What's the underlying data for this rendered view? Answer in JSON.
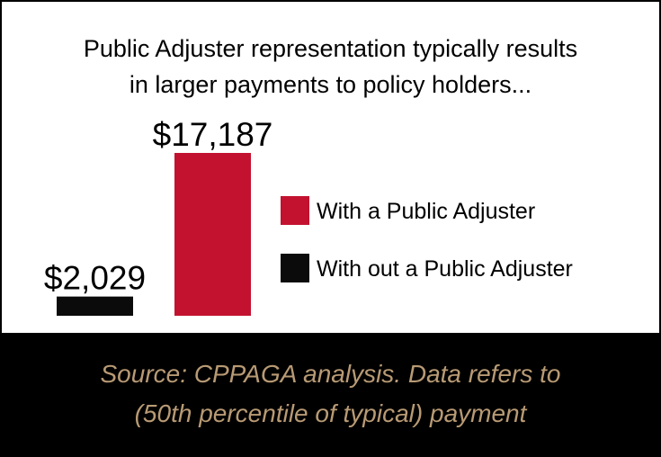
{
  "chart_data": {
    "type": "bar",
    "title_lines": [
      "Public Adjuster representation typically results",
      "in larger payments to policy holders..."
    ],
    "categories": [
      "With out a Public Adjuster",
      "With a Public Adjuster"
    ],
    "values": [
      2029,
      17187
    ],
    "value_labels": [
      "$2,029",
      "$17,187"
    ],
    "colors": [
      "#0b0b0b",
      "#c31230"
    ],
    "legend": {
      "placement": "right",
      "items": [
        {
          "label": "With a Public Adjuster",
          "color": "#c31230"
        },
        {
          "label": "With out a Public Adjuster",
          "color": "#0b0b0b"
        }
      ]
    },
    "grid": false,
    "axes_visible": false
  },
  "footer": {
    "lines": [
      "Source: CPPAGA analysis. Data refers to",
      "(50th percentile of typical) payment"
    ],
    "text_color": "#b89a74"
  }
}
